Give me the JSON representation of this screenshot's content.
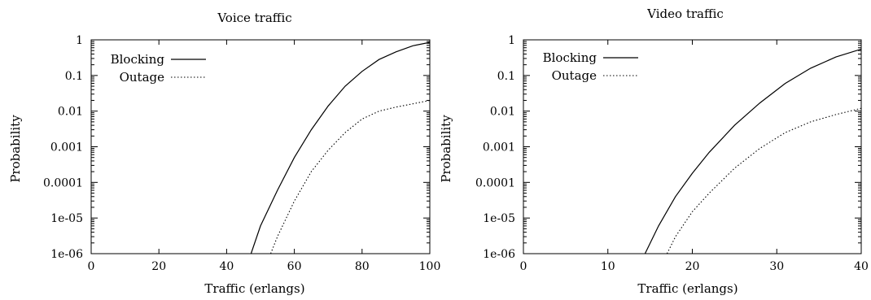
{
  "chart_data": [
    {
      "type": "line",
      "title": "Voice traffic",
      "xlabel": "Traffic (erlangs)",
      "ylabel": "Probability",
      "xlim": [
        0,
        100
      ],
      "ylim": [
        1e-06,
        1
      ],
      "y_scale": "log",
      "x_ticks": [
        "0",
        "20",
        "40",
        "60",
        "80",
        "100"
      ],
      "y_ticks": [
        "1e-06",
        "1e-05",
        "0.0001",
        "0.001",
        "0.01",
        "0.1",
        "1"
      ],
      "grid": false,
      "legend": "top-left",
      "series": [
        {
          "name": "Blocking",
          "style": "solid",
          "x": [
            47.2,
            50,
            55,
            60,
            65,
            70,
            75,
            80,
            85,
            90,
            95,
            100
          ],
          "y": [
            1e-06,
            6e-06,
            6e-05,
            0.0005,
            0.003,
            0.014,
            0.05,
            0.13,
            0.28,
            0.46,
            0.68,
            0.85
          ]
        },
        {
          "name": "Outage",
          "style": "dotted",
          "x": [
            53,
            55,
            60,
            65,
            70,
            75,
            80,
            85,
            90,
            95,
            100
          ],
          "y": [
            1e-06,
            3e-06,
            3e-05,
            0.0002,
            0.0008,
            0.0025,
            0.006,
            0.01,
            0.013,
            0.016,
            0.02
          ]
        }
      ]
    },
    {
      "type": "line",
      "title": "Video traffic",
      "xlabel": "Traffic (erlangs)",
      "ylabel": "Probability",
      "xlim": [
        0,
        40
      ],
      "ylim": [
        1e-06,
        1
      ],
      "y_scale": "log",
      "x_ticks": [
        "0",
        "10",
        "20",
        "30",
        "40"
      ],
      "y_ticks": [
        "1e-06",
        "1e-05",
        "0.0001",
        "0.001",
        "0.01",
        "0.1",
        "1"
      ],
      "grid": false,
      "legend": "top-left",
      "series": [
        {
          "name": "Blocking",
          "style": "solid",
          "x": [
            14.4,
            16,
            18,
            20,
            22,
            25,
            28,
            31,
            34,
            37,
            40
          ],
          "y": [
            1e-06,
            6e-06,
            4e-05,
            0.00018,
            0.0007,
            0.004,
            0.017,
            0.06,
            0.16,
            0.33,
            0.55
          ]
        },
        {
          "name": "Outage",
          "style": "dotted",
          "x": [
            17,
            18,
            20,
            22,
            25,
            28,
            31,
            34,
            37,
            40
          ],
          "y": [
            1e-06,
            3e-06,
            1.5e-05,
            5e-05,
            0.00025,
            0.0009,
            0.0025,
            0.005,
            0.008,
            0.012
          ]
        }
      ]
    }
  ]
}
